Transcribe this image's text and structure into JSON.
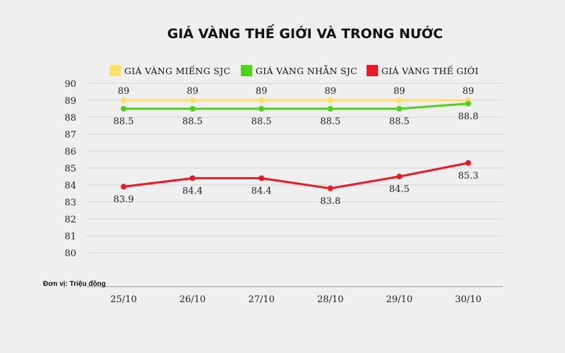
{
  "chart_data": {
    "type": "line",
    "title": "GIÁ VÀNG THẾ GIỚI VÀ TRONG NƯỚC",
    "unit_note": "Đơn vị: Triệu đồng",
    "categories": [
      "25/10",
      "26/10",
      "27/10",
      "28/10",
      "29/10",
      "30/10"
    ],
    "y_ticks": [
      "80",
      "81",
      "82",
      "83",
      "84",
      "85",
      "86",
      "87",
      "88",
      "89",
      "90"
    ],
    "ylim": [
      80,
      90
    ],
    "grid": true,
    "legend_position": "top",
    "series": [
      {
        "name": "GIÁ VÀNG MIẾNG SJC",
        "color": "#ffe066",
        "values": [
          89,
          89,
          89,
          89,
          89,
          89
        ],
        "labels": [
          "89",
          "89",
          "89",
          "89",
          "89",
          "89"
        ],
        "label_side": "above"
      },
      {
        "name": "GIÁ VÀNG NHẪN SJC",
        "color": "#4fd11a",
        "values": [
          88.5,
          88.5,
          88.5,
          88.5,
          88.5,
          88.8
        ],
        "labels": [
          "88.5",
          "88.5",
          "88.5",
          "88.5",
          "88.5",
          "88.8"
        ],
        "label_side": "below"
      },
      {
        "name": "GIÁ VÀNG THẾ GIỚI",
        "color": "#ee1620",
        "values": [
          83.9,
          84.4,
          84.4,
          83.8,
          84.5,
          85.3
        ],
        "labels": [
          "83.9",
          "84.4",
          "84.4",
          "83.8",
          "84.5",
          "85.3"
        ],
        "label_side": "below"
      }
    ]
  }
}
